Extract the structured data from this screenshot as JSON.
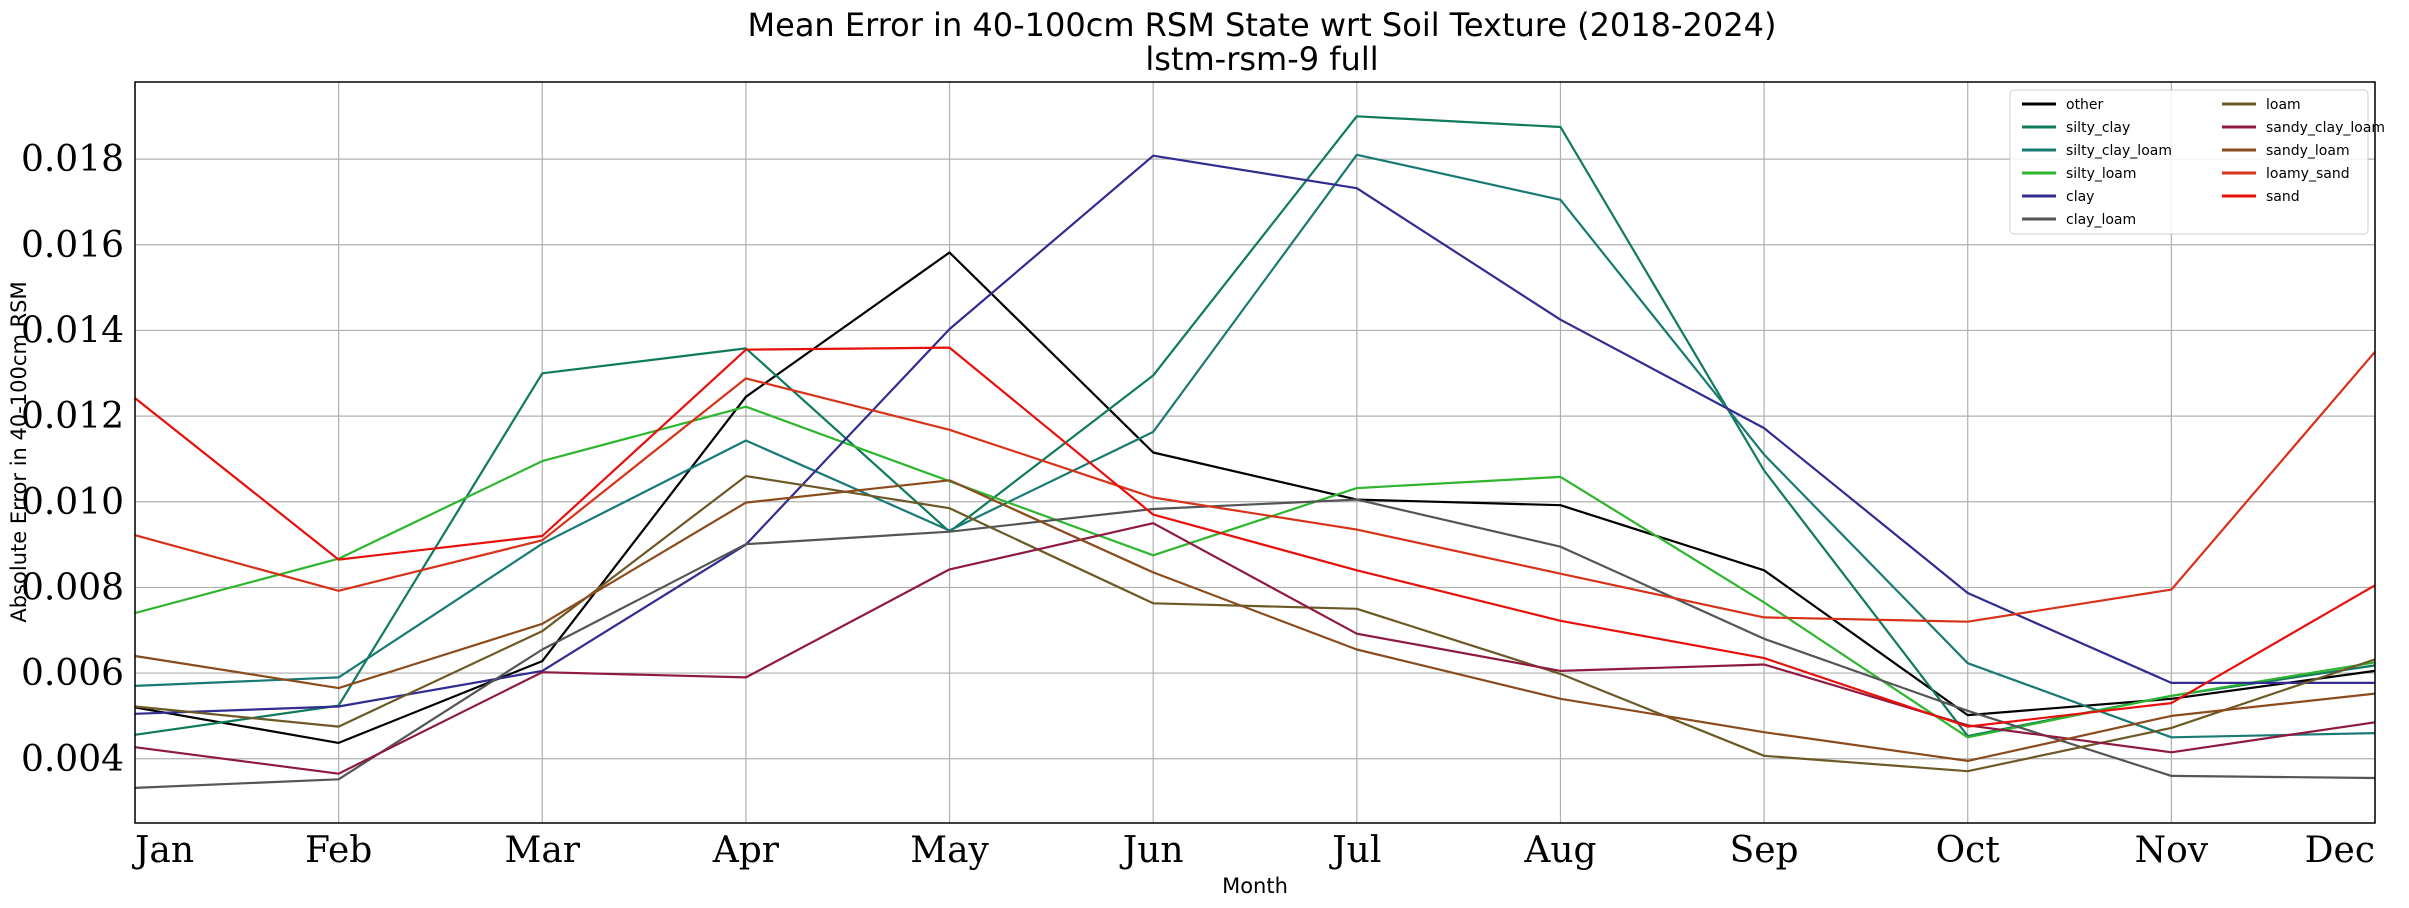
{
  "chart_data": {
    "type": "line",
    "title": "Mean Error in 40-100cm RSM State wrt Soil Texture (2018-2024)",
    "subtitle": "lstm-rsm-9 full",
    "xlabel": "Month",
    "ylabel": "Absolute Error in 40-100cm RSM",
    "categories": [
      "Jan",
      "Feb",
      "Mar",
      "Apr",
      "May",
      "Jun",
      "Jul",
      "Aug",
      "Sep",
      "Oct",
      "Nov",
      "Dec"
    ],
    "ylim": [
      0.0025,
      0.0198
    ],
    "yticks": [
      0.004,
      0.006,
      0.008,
      0.01,
      0.012,
      0.014,
      0.016,
      0.018
    ],
    "ytick_labels": [
      "0.004",
      "0.006",
      "0.008",
      "0.010",
      "0.012",
      "0.014",
      "0.016",
      "0.018"
    ],
    "grid": true,
    "legend_position": "top-right",
    "series": [
      {
        "name": "other",
        "color": "#000000",
        "values": [
          0.0052,
          0.00437,
          0.00628,
          0.01245,
          0.01582,
          0.01115,
          0.01005,
          0.00992,
          0.0084,
          0.00502,
          0.0054,
          0.00605
        ]
      },
      {
        "name": "silty_clay",
        "color": "#0f7a5c",
        "values": [
          0.00456,
          0.00524,
          0.013,
          0.01358,
          0.0093,
          0.01295,
          0.019,
          0.01875,
          0.01073,
          0.00453,
          0.00547,
          0.00618
        ]
      },
      {
        "name": "silty_clay_loam",
        "color": "#197a74",
        "values": [
          0.0057,
          0.0059,
          0.00902,
          0.01143,
          0.00933,
          0.01163,
          0.0181,
          0.01705,
          0.0111,
          0.00623,
          0.0045,
          0.0046
        ]
      },
      {
        "name": "silty_loam",
        "color": "#2fb52f",
        "values": [
          0.0074,
          0.00867,
          0.01095,
          0.01222,
          0.01048,
          0.00875,
          0.01032,
          0.01058,
          0.00765,
          0.0045,
          0.00547,
          0.00625
        ]
      },
      {
        "name": "clay",
        "color": "#322c91",
        "values": [
          0.00505,
          0.00522,
          0.00605,
          0.009,
          0.01403,
          0.01808,
          0.01732,
          0.01425,
          0.01172,
          0.00787,
          0.00577,
          0.00577
        ]
      },
      {
        "name": "clay_loam",
        "color": "#555555",
        "values": [
          0.00332,
          0.00352,
          0.00655,
          0.00901,
          0.0093,
          0.00983,
          0.01005,
          0.00895,
          0.0068,
          0.00512,
          0.0036,
          0.00355
        ]
      },
      {
        "name": "loam",
        "color": "#6b5a26",
        "values": [
          0.00522,
          0.00475,
          0.00698,
          0.0106,
          0.00985,
          0.00763,
          0.0075,
          0.00598,
          0.00407,
          0.00371,
          0.00472,
          0.00632
        ]
      },
      {
        "name": "sandy_clay_loam",
        "color": "#8e1a40",
        "values": [
          0.00427,
          0.00365,
          0.00602,
          0.0059,
          0.00842,
          0.0095,
          0.00692,
          0.00605,
          0.0062,
          0.00478,
          0.00415,
          0.00485
        ]
      },
      {
        "name": "sandy_loam",
        "color": "#8a4b1d",
        "values": [
          0.0064,
          0.00565,
          0.00715,
          0.00998,
          0.0105,
          0.00835,
          0.00655,
          0.0054,
          0.00462,
          0.00395,
          0.005,
          0.00552
        ]
      },
      {
        "name": "loamy_sand",
        "color": "#d6331a",
        "values": [
          0.00922,
          0.00792,
          0.0091,
          0.01288,
          0.01168,
          0.0101,
          0.00935,
          0.00832,
          0.0073,
          0.0072,
          0.00795,
          0.0135
        ]
      },
      {
        "name": "sand",
        "color": "#e8100c",
        "values": [
          0.01242,
          0.00865,
          0.0092,
          0.01355,
          0.0136,
          0.0097,
          0.0084,
          0.00722,
          0.00635,
          0.00475,
          0.0053,
          0.00805
        ]
      }
    ]
  }
}
